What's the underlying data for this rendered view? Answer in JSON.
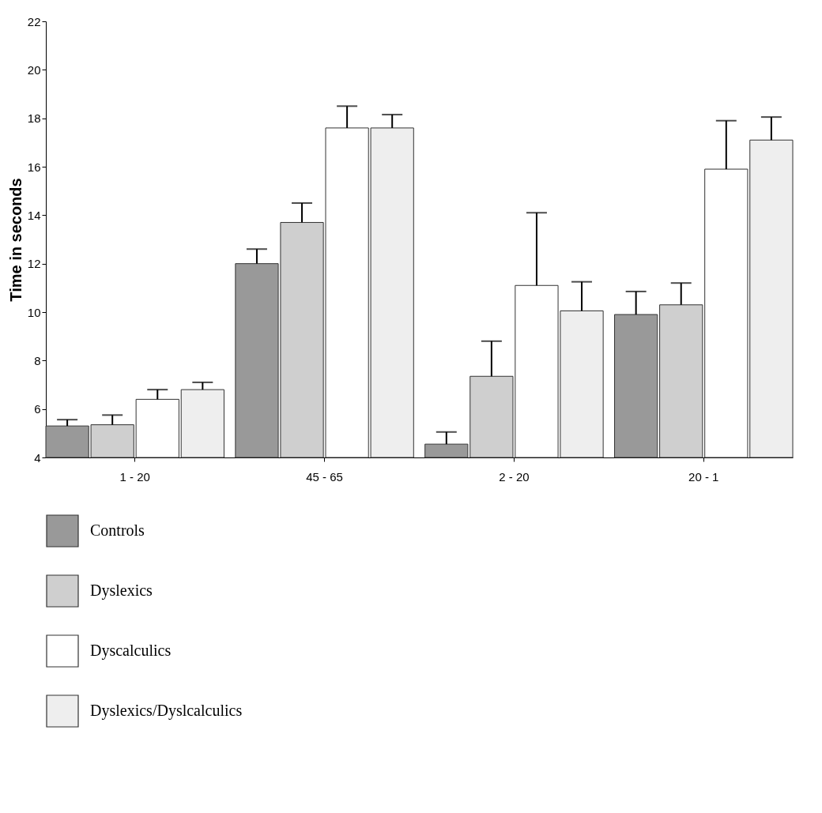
{
  "chart_data": {
    "type": "bar",
    "ylabel": "Time in seconds",
    "categories": [
      "1 - 20",
      "45 - 65",
      "2 - 20",
      "20 - 1"
    ],
    "series": [
      {
        "name": "Controls",
        "color": "#999999",
        "values": [
          5.3,
          12.0,
          4.55,
          9.9
        ],
        "errors": [
          0.26,
          0.6,
          0.5,
          0.95
        ]
      },
      {
        "name": "Dyslexics",
        "color": "#cfcfcf",
        "values": [
          5.35,
          13.7,
          7.35,
          10.3
        ],
        "errors": [
          0.4,
          0.8,
          1.45,
          0.9
        ]
      },
      {
        "name": "Dyscalculics",
        "color": "#ffffff",
        "values": [
          6.4,
          17.6,
          11.1,
          15.9
        ],
        "errors": [
          0.4,
          0.9,
          3.0,
          2.0
        ]
      },
      {
        "name": "Dyslexics/Dyslcalculics",
        "color": "#eeeeee",
        "values": [
          6.8,
          17.6,
          10.05,
          17.1
        ],
        "errors": [
          0.3,
          0.55,
          1.2,
          0.95
        ]
      }
    ],
    "ylim": [
      4,
      22
    ],
    "yticks": [
      4,
      6,
      8,
      10,
      12,
      14,
      16,
      18,
      20,
      22
    ],
    "grid": false,
    "legend": "bottom"
  }
}
